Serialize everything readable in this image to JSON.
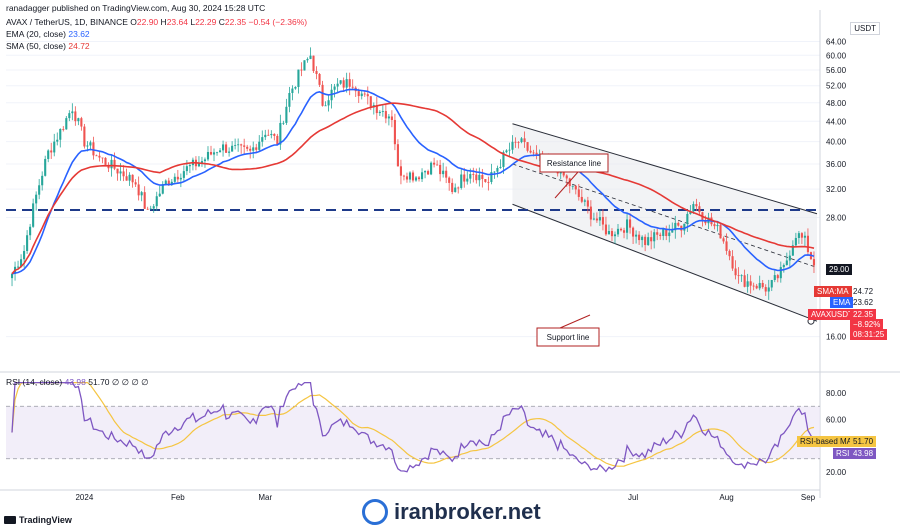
{
  "header": {
    "publisher": "ranadagger published on TradingView.com, Aug 30, 2024 15:28 UTC",
    "symbol_line": "AVAX / TetherUS, 1D, BINANCE",
    "ohlc": {
      "o_label": "O",
      "o": "22.90",
      "h_label": "H",
      "h": "23.64",
      "l_label": "L",
      "l": "22.29",
      "c_label": "C",
      "c": "22.35",
      "change": "−0.54 (−2.36%)"
    },
    "ema_label": "EMA (20, close)",
    "ema_value": "23.62",
    "sma_label": "SMA (50, close)",
    "sma_value": "24.72",
    "currency": "USDT"
  },
  "annotations": {
    "resistance": "Resistance line",
    "support": "Support line"
  },
  "price_tags": {
    "level_29": "29.00",
    "sma_tag_label": "SMA:MA",
    "sma_tag_value": "24.72",
    "ema_tag_label": "EMA",
    "ema_tag_value": "23.62",
    "symbol_tag_label": "AVAXUSDT",
    "symbol_tag_value": "22.35",
    "pct": "−8.92%",
    "countdown": "08:31:25"
  },
  "rsi": {
    "label": "RSI (14, close)",
    "value": "43.98",
    "ma_value": "51.70",
    "extra": "51.70  ∅ ∅ ∅ ∅",
    "ma_tag": "RSI-based MA",
    "ma_tag_value": "51.70",
    "rsi_tag": "RSI",
    "rsi_tag_value": "43.98"
  },
  "footer": {
    "tv_logo": "TradingView",
    "watermark": "iranbroker.net"
  },
  "colors": {
    "up": "#26a69a",
    "down": "#ef5350",
    "ema": "#2962ff",
    "sma": "#e53935",
    "level": "#1e3a8a",
    "channel": "#2a2e39",
    "rsi": "#7e57c2",
    "rsi_ma": "#f5c542"
  },
  "chart_data": {
    "type": "candlestick",
    "y_axis_ticks": [
      "64.00",
      "60.00",
      "56.00",
      "52.00",
      "48.00",
      "44.00",
      "40.00",
      "36.00",
      "32.00",
      "28.00",
      "16.00"
    ],
    "ylim": [
      14,
      66
    ],
    "scale": "log",
    "x_tick_labels": [
      "2024",
      "Feb",
      "Mar",
      "Jul",
      "Aug",
      "Sep"
    ],
    "rsi_y_ticks": [
      "80.00",
      "60.00",
      "20.00"
    ],
    "horizontal_level": 29.0,
    "close_path": [
      {
        "d": "2023-12-08",
        "c": 21.5
      },
      {
        "d": "2023-12-12",
        "c": 24.0
      },
      {
        "d": "2023-12-16",
        "c": 31.0
      },
      {
        "d": "2023-12-20",
        "c": 38.0
      },
      {
        "d": "2023-12-24",
        "c": 42.0
      },
      {
        "d": "2023-12-28",
        "c": 47.0
      },
      {
        "d": "2024-01-01",
        "c": 40.0
      },
      {
        "d": "2024-01-06",
        "c": 37.0
      },
      {
        "d": "2024-01-12",
        "c": 35.0
      },
      {
        "d": "2024-01-18",
        "c": 33.0
      },
      {
        "d": "2024-01-22",
        "c": 28.5
      },
      {
        "d": "2024-01-28",
        "c": 33.0
      },
      {
        "d": "2024-02-03",
        "c": 35.0
      },
      {
        "d": "2024-02-09",
        "c": 36.5
      },
      {
        "d": "2024-02-15",
        "c": 39.0
      },
      {
        "d": "2024-02-20",
        "c": 38.5
      },
      {
        "d": "2024-02-25",
        "c": 38.0
      },
      {
        "d": "2024-03-01",
        "c": 42.0
      },
      {
        "d": "2024-03-05",
        "c": 40.0
      },
      {
        "d": "2024-03-09",
        "c": 50.0
      },
      {
        "d": "2024-03-13",
        "c": 56.0
      },
      {
        "d": "2024-03-16",
        "c": 60.0
      },
      {
        "d": "2024-03-20",
        "c": 48.0
      },
      {
        "d": "2024-03-25",
        "c": 52.0
      },
      {
        "d": "2024-03-30",
        "c": 53.0
      },
      {
        "d": "2024-04-03",
        "c": 49.0
      },
      {
        "d": "2024-04-07",
        "c": 47.0
      },
      {
        "d": "2024-04-12",
        "c": 45.0
      },
      {
        "d": "2024-04-14",
        "c": 35.0
      },
      {
        "d": "2024-04-20",
        "c": 34.0
      },
      {
        "d": "2024-04-26",
        "c": 36.0
      },
      {
        "d": "2024-05-02",
        "c": 32.0
      },
      {
        "d": "2024-05-08",
        "c": 35.0
      },
      {
        "d": "2024-05-14",
        "c": 33.0
      },
      {
        "d": "2024-05-20",
        "c": 38.0
      },
      {
        "d": "2024-05-24",
        "c": 40.0
      },
      {
        "d": "2024-05-30",
        "c": 37.0
      },
      {
        "d": "2024-06-05",
        "c": 36.0
      },
      {
        "d": "2024-06-11",
        "c": 32.0
      },
      {
        "d": "2024-06-17",
        "c": 28.5
      },
      {
        "d": "2024-06-23",
        "c": 26.0
      },
      {
        "d": "2024-06-29",
        "c": 27.0
      },
      {
        "d": "2024-07-05",
        "c": 25.0
      },
      {
        "d": "2024-07-11",
        "c": 26.0
      },
      {
        "d": "2024-07-17",
        "c": 27.0
      },
      {
        "d": "2024-07-21",
        "c": 30.0
      },
      {
        "d": "2024-07-25",
        "c": 28.0
      },
      {
        "d": "2024-07-30",
        "c": 26.0
      },
      {
        "d": "2024-08-05",
        "c": 21.0
      },
      {
        "d": "2024-08-10",
        "c": 20.5
      },
      {
        "d": "2024-08-15",
        "c": 20.0
      },
      {
        "d": "2024-08-20",
        "c": 22.0
      },
      {
        "d": "2024-08-24",
        "c": 26.0
      },
      {
        "d": "2024-08-27",
        "c": 25.0
      },
      {
        "d": "2024-08-30",
        "c": 22.35
      }
    ],
    "ema20_last": 23.62,
    "sma50_last": 24.72,
    "rsi_last": 43.98,
    "rsi_ma_last": 51.7
  }
}
